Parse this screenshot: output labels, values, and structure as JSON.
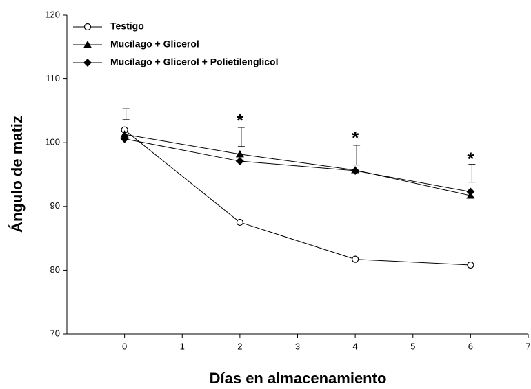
{
  "chart_data": {
    "type": "line",
    "xlabel": "Días en almacenamiento",
    "ylabel": "Ángulo de matiz",
    "xlim": [
      -1,
      7
    ],
    "xticks": [
      0,
      1,
      2,
      3,
      4,
      5,
      6,
      7
    ],
    "ylim": [
      70,
      120
    ],
    "yticks": [
      70,
      80,
      90,
      100,
      110,
      120
    ],
    "x": [
      0,
      2,
      4,
      6
    ],
    "series": [
      {
        "name": "Testigo",
        "color": "#000000",
        "marker": "circle-open",
        "values": [
          102.0,
          87.5,
          81.7,
          80.8
        ]
      },
      {
        "name": "Mucílago + Glicerol",
        "color": "#000000",
        "marker": "triangle",
        "values": [
          101.3,
          98.2,
          95.7,
          91.7
        ]
      },
      {
        "name": "Mucílago + Glicerol + Polietilenglicol",
        "color": "#000000",
        "marker": "diamond",
        "values": [
          100.6,
          97.1,
          95.6,
          92.3
        ]
      }
    ],
    "error_bars": {
      "low": [
        103.6,
        99.4,
        96.5,
        93.8
      ],
      "high": [
        105.3,
        102.4,
        99.6,
        96.6
      ]
    },
    "annotations": [
      {
        "text": "*",
        "x": 2,
        "y": 103.8
      },
      {
        "text": "*",
        "x": 4,
        "y": 101.1
      },
      {
        "text": "*",
        "x": 6,
        "y": 97.8
      }
    ],
    "legend": "upper left"
  }
}
